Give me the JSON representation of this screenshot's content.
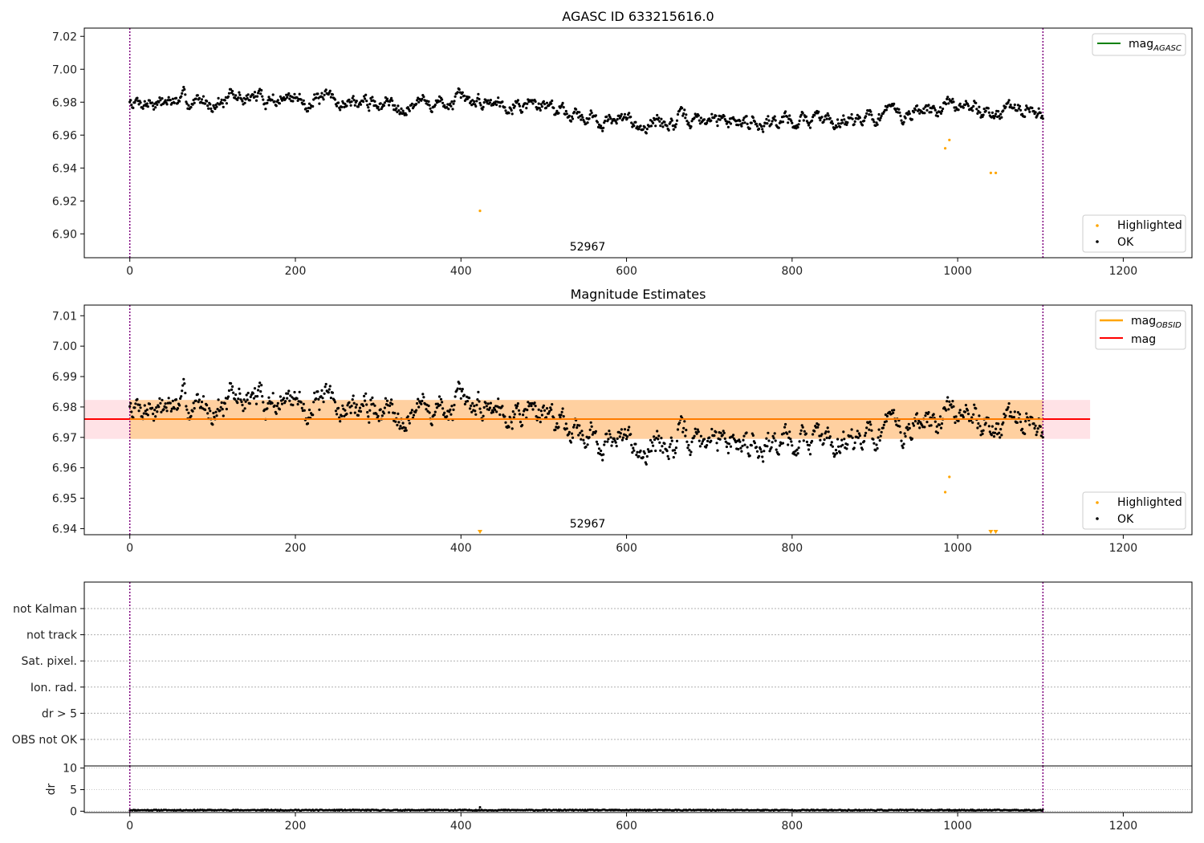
{
  "chart_data": [
    {
      "type": "scatter",
      "title": "AGASC ID 633215616.0",
      "annotation": "52967",
      "xlim": [
        -55,
        1283
      ],
      "ylim": [
        6.8855,
        7.025
      ],
      "xticks": [
        "0",
        "200",
        "400",
        "600",
        "800",
        "1000",
        "1200"
      ],
      "yticks": [
        "6.90",
        "6.92",
        "6.94",
        "6.96",
        "6.98",
        "7.00",
        "7.02"
      ],
      "vlines_x": [
        0,
        1103
      ],
      "legend_upper": [
        {
          "label": "mag",
          "sub": "AGASC",
          "color": "#008000",
          "kind": "line"
        }
      ],
      "legend_lower": [
        {
          "label": "Highlighted",
          "color": "#ffa500",
          "kind": "dot"
        },
        {
          "label": "OK",
          "color": "#000000",
          "kind": "dot"
        }
      ],
      "highlighted": [
        [
          423,
          6.914
        ],
        [
          985,
          6.952
        ],
        [
          990,
          6.957
        ],
        [
          1040,
          6.937
        ],
        [
          1046,
          6.937
        ]
      ],
      "trend": [
        [
          0,
          6.981
        ],
        [
          80,
          6.98
        ],
        [
          150,
          6.983
        ],
        [
          250,
          6.98
        ],
        [
          350,
          6.979
        ],
        [
          450,
          6.981
        ],
        [
          520,
          6.977
        ],
        [
          560,
          6.97
        ],
        [
          620,
          6.967
        ],
        [
          700,
          6.969
        ],
        [
          800,
          6.969
        ],
        [
          880,
          6.971
        ],
        [
          940,
          6.973
        ],
        [
          1000,
          6.977
        ],
        [
          1050,
          6.975
        ],
        [
          1103,
          6.973
        ]
      ],
      "ok_seed": 7
    },
    {
      "type": "scatter",
      "title": "Magnitude Estimates",
      "annotation": "52967",
      "xlim": [
        -55,
        1283
      ],
      "ylim": [
        6.938,
        7.0135
      ],
      "xticks": [
        "0",
        "200",
        "400",
        "600",
        "800",
        "1000",
        "1200"
      ],
      "yticks": [
        "6.94",
        "6.95",
        "6.96",
        "6.97",
        "6.98",
        "6.99",
        "7.00",
        "7.01"
      ],
      "vlines_x": [
        0,
        1103
      ],
      "mag_line": 6.976,
      "band_pink": [
        6.9695,
        6.9823
      ],
      "band_orange": [
        6.9695,
        6.9823
      ],
      "band_pink_x": [
        -55,
        1160
      ],
      "band_orange_x": [
        0,
        1103
      ],
      "legend_upper": [
        {
          "label": "mag",
          "sub": "OBSID",
          "color": "#ffa500",
          "kind": "line"
        },
        {
          "label": "mag",
          "sub": "",
          "color": "#ff0000",
          "kind": "line"
        }
      ],
      "legend_lower": [
        {
          "label": "Highlighted",
          "color": "#ffa500",
          "kind": "dot"
        },
        {
          "label": "OK",
          "color": "#000000",
          "kind": "dot"
        }
      ],
      "highlighted": [
        [
          985,
          6.952
        ],
        [
          990,
          6.957
        ]
      ],
      "clipped_triangles_x": [
        423,
        1040,
        1046
      ],
      "trend": [
        [
          0,
          6.981
        ],
        [
          80,
          6.98
        ],
        [
          150,
          6.983
        ],
        [
          250,
          6.98
        ],
        [
          350,
          6.979
        ],
        [
          450,
          6.981
        ],
        [
          520,
          6.977
        ],
        [
          560,
          6.97
        ],
        [
          620,
          6.967
        ],
        [
          700,
          6.969
        ],
        [
          800,
          6.969
        ],
        [
          880,
          6.971
        ],
        [
          940,
          6.973
        ],
        [
          1000,
          6.977
        ],
        [
          1050,
          6.975
        ],
        [
          1103,
          6.973
        ]
      ],
      "ok_seed": 7
    },
    {
      "type": "scatter",
      "title": "",
      "xlim": [
        -55,
        1283
      ],
      "flag_labels": [
        "not Kalman",
        "not track",
        "Sat. pixel.",
        "Ion. rad.",
        "dr > 5",
        "OBS not OK"
      ],
      "vlines_x": [
        0,
        1103
      ]
    },
    {
      "type": "scatter",
      "ylabel": "dr",
      "xlim": [
        -55,
        1283
      ],
      "ylim": [
        -0.3,
        10.5
      ],
      "xticks": [
        "0",
        "200",
        "400",
        "600",
        "800",
        "1000",
        "1200"
      ],
      "yticks": [
        "0",
        "5",
        "10"
      ],
      "vlines_x": [
        0,
        1103
      ],
      "dr_typical": 0.25,
      "dr_outlier": [
        423,
        0.9
      ]
    }
  ]
}
